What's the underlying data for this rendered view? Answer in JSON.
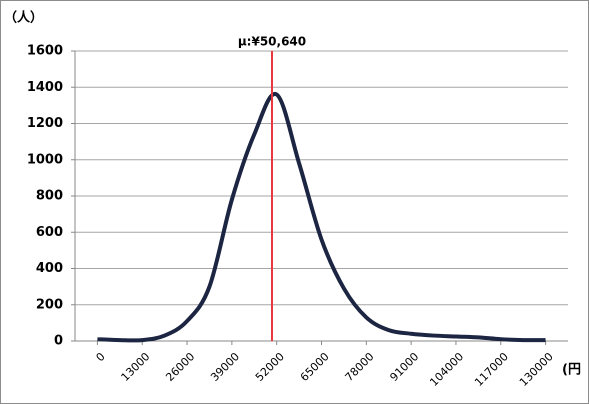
{
  "chart_data": {
    "type": "line",
    "y_label": "（人）",
    "x_label": "(円",
    "x": [
      0,
      6500,
      13000,
      19500,
      26000,
      32500,
      39000,
      45500,
      52000,
      58500,
      65000,
      71500,
      78000,
      84500,
      91000,
      97500,
      104000,
      110500,
      117000,
      123500,
      130000
    ],
    "series": [
      {
        "color": "#1c2541",
        "values": [
          10,
          5,
          5,
          30,
          110,
          300,
          780,
          1140,
          1360,
          980,
          560,
          290,
          130,
          60,
          40,
          30,
          25,
          20,
          10,
          5,
          5
        ]
      }
    ],
    "annotation": {
      "label": "μ:¥50,640",
      "x": 50640,
      "color": "#e8383d"
    },
    "xlim": [
      -6500,
      136500
    ],
    "xticks": [
      0,
      13000,
      26000,
      39000,
      52000,
      65000,
      78000,
      91000,
      104000,
      117000,
      130000
    ],
    "ylim": [
      0,
      1600
    ],
    "yticks": [
      0,
      200,
      400,
      600,
      800,
      1000,
      1200,
      1400,
      1600
    ],
    "grid": true
  }
}
